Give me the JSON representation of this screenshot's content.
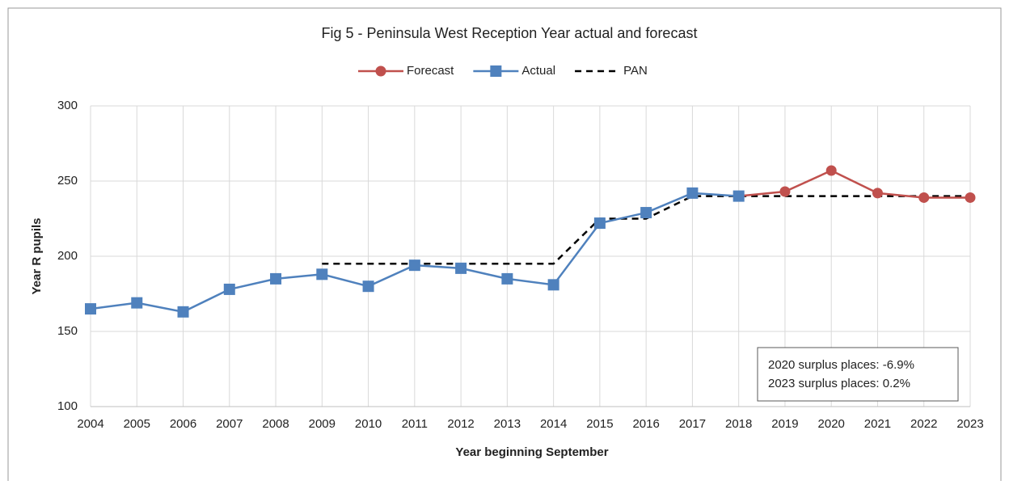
{
  "chart_data": {
    "type": "line",
    "title": "Fig 5 - Peninsula West Reception Year actual and forecast",
    "x_label": "Year beginning September",
    "y_label": "Year R pupils",
    "categories": [
      "2004",
      "2005",
      "2006",
      "2007",
      "2008",
      "2009",
      "2010",
      "2011",
      "2012",
      "2013",
      "2014",
      "2015",
      "2016",
      "2017",
      "2018",
      "2019",
      "2020",
      "2021",
      "2022",
      "2023"
    ],
    "series": [
      {
        "name": "Forecast",
        "color": "#c0504d",
        "marker": "circle",
        "dashed": false,
        "values": [
          null,
          null,
          null,
          null,
          null,
          null,
          null,
          null,
          null,
          null,
          null,
          null,
          null,
          null,
          240,
          243,
          257,
          242,
          239,
          239
        ]
      },
      {
        "name": "Actual",
        "color": "#4f81bd",
        "marker": "square",
        "dashed": false,
        "values": [
          165,
          169,
          163,
          178,
          185,
          188,
          180,
          194,
          192,
          185,
          181,
          222,
          229,
          242,
          240,
          null,
          null,
          null,
          null,
          null
        ]
      },
      {
        "name": "PAN",
        "color": "#000000",
        "marker": "none",
        "dashed": true,
        "values": [
          null,
          null,
          null,
          null,
          null,
          195,
          195,
          195,
          195,
          195,
          195,
          225,
          225,
          240,
          240,
          240,
          240,
          240,
          240,
          240
        ]
      }
    ],
    "ylim": [
      100,
      300
    ],
    "yticks": [
      100,
      150,
      200,
      250,
      300
    ],
    "grid": true,
    "legend": "top",
    "annotations": [
      "2020 surplus places: -6.9%",
      "2023 surplus places: 0.2%"
    ]
  }
}
